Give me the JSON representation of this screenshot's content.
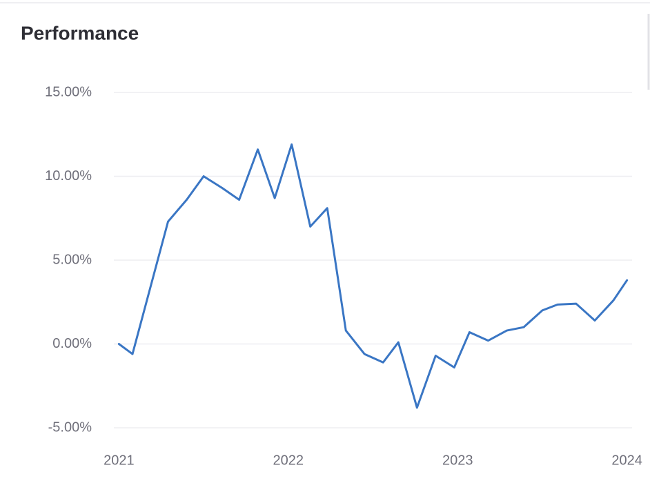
{
  "chart_data": {
    "type": "line",
    "title": "Performance",
    "x": [
      2021.0,
      2021.08,
      2021.29,
      2021.4,
      2021.5,
      2021.61,
      2021.71,
      2021.82,
      2021.92,
      2022.02,
      2022.13,
      2022.23,
      2022.34,
      2022.45,
      2022.56,
      2022.65,
      2022.76,
      2022.87,
      2022.98,
      2023.07,
      2023.18,
      2023.29,
      2023.39,
      2023.5,
      2023.59,
      2023.7,
      2023.81,
      2023.92,
      2024.0
    ],
    "series": [
      {
        "name": "Performance",
        "color": "#3a76c4",
        "values": [
          0.0,
          -0.6,
          7.3,
          8.6,
          10.0,
          9.3,
          8.6,
          11.6,
          8.7,
          11.9,
          7.0,
          8.1,
          0.8,
          -0.6,
          -1.1,
          0.1,
          -3.8,
          -0.7,
          -1.4,
          0.7,
          0.2,
          0.8,
          1.0,
          2.0,
          2.35,
          2.4,
          1.4,
          2.6,
          3.8
        ]
      }
    ],
    "xlim": [
      2020.97,
      2024.03
    ],
    "xticks": [
      2021,
      2022,
      2023,
      2024
    ],
    "ylim": [
      -5,
      15
    ],
    "yticks": [
      {
        "value": -5,
        "label": "-5.00%"
      },
      {
        "value": 0,
        "label": "0.00%"
      },
      {
        "value": 5,
        "label": "5.00%"
      },
      {
        "value": 10,
        "label": "10.00%"
      },
      {
        "value": 15,
        "label": "15.00%"
      }
    ],
    "grid": true
  }
}
